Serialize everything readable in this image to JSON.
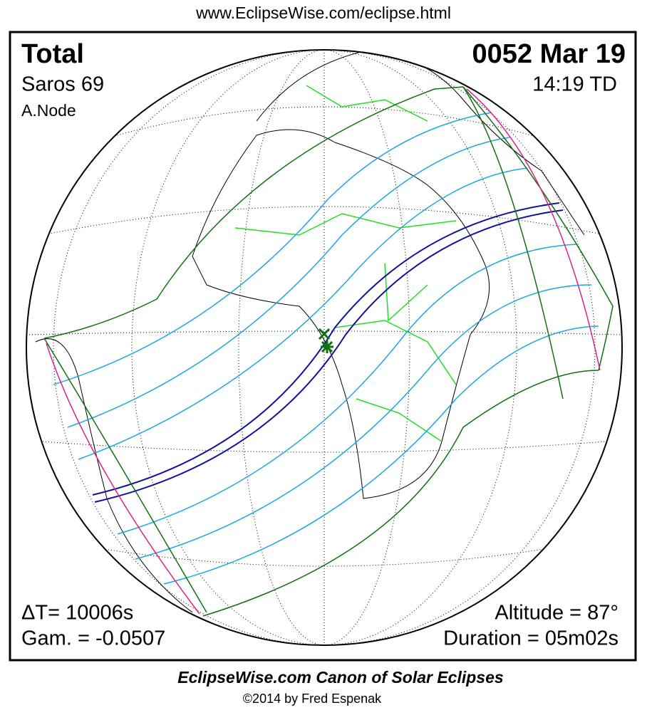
{
  "header": {
    "url": "www.EclipseWise.com/eclipse.html"
  },
  "eclipse": {
    "type": "Total",
    "saros": "Saros  69",
    "node": "A.Node",
    "date": "0052 Mar 19",
    "time": "14:19 TD",
    "delta_t": "ΔT=  10006s",
    "gamma": "Gam. = -0.0507",
    "altitude": "Altitude = 87°",
    "duration": "Duration = 05m02s"
  },
  "footer": {
    "title": "EclipseWise.com Canon of Solar Eclipses",
    "copyright": "©2014 by Fred Espenak"
  }
}
